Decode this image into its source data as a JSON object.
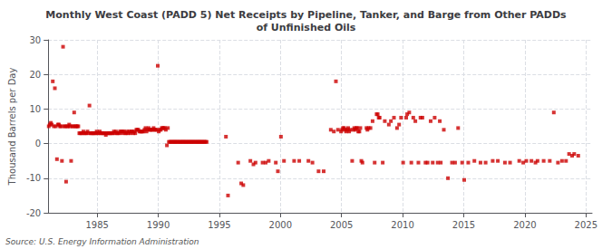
{
  "chart_data": {
    "type": "scatter",
    "title": "Monthly West Coast (PADD 5) Net Receipts by Pipeline, Tanker, and Barge from Other PADDs\nof Unfinished Oils",
    "ylabel": "Thousand Barrels per Day",
    "annotations": [
      "Source: U.S. Energy Information Administration"
    ],
    "color": "#cc0000",
    "marker": "square",
    "grid": true,
    "xlim": [
      1981.0,
      2025.5
    ],
    "xticks": [
      1985,
      1990,
      1995,
      2000,
      2005,
      2010,
      2015,
      2020,
      2025
    ],
    "ylim": [
      -20,
      30
    ],
    "yticks": [
      -20,
      -10,
      0,
      10,
      20,
      30
    ],
    "x": [
      1981.04,
      1981.12,
      1981.21,
      1981.29,
      1981.37,
      1981.46,
      1981.54,
      1981.62,
      1981.71,
      1981.79,
      1981.87,
      1981.96,
      1982.04,
      1982.12,
      1982.21,
      1982.29,
      1982.37,
      1982.46,
      1982.54,
      1982.62,
      1982.71,
      1982.79,
      1982.87,
      1982.96,
      1983.04,
      1983.12,
      1983.21,
      1983.29,
      1983.37,
      1983.46,
      1983.54,
      1983.62,
      1983.71,
      1983.79,
      1983.87,
      1983.96,
      1984.04,
      1984.12,
      1984.21,
      1984.29,
      1984.37,
      1984.46,
      1984.54,
      1984.62,
      1984.71,
      1984.79,
      1984.87,
      1984.96,
      1985.04,
      1985.12,
      1985.21,
      1985.29,
      1985.37,
      1985.46,
      1985.54,
      1985.62,
      1985.71,
      1985.79,
      1985.87,
      1985.96,
      1986.04,
      1986.12,
      1986.21,
      1986.29,
      1986.37,
      1986.46,
      1986.54,
      1986.62,
      1986.71,
      1986.79,
      1986.87,
      1986.96,
      1987.04,
      1987.12,
      1987.21,
      1987.29,
      1987.37,
      1987.46,
      1987.54,
      1987.62,
      1987.71,
      1987.79,
      1987.87,
      1987.96,
      1988.04,
      1988.12,
      1988.21,
      1988.29,
      1988.37,
      1988.46,
      1988.54,
      1988.62,
      1988.71,
      1988.79,
      1988.87,
      1988.96,
      1989.04,
      1989.12,
      1989.21,
      1989.29,
      1989.37,
      1989.46,
      1989.54,
      1989.62,
      1989.71,
      1989.79,
      1989.87,
      1989.96,
      1990.04,
      1990.12,
      1990.21,
      1990.29,
      1990.37,
      1990.46,
      1990.54,
      1990.62,
      1990.71,
      1990.79,
      1990.87,
      1990.96,
      1991.04,
      1991.12,
      1991.21,
      1991.29,
      1991.37,
      1991.46,
      1991.54,
      1991.62,
      1991.71,
      1991.79,
      1991.87,
      1991.96,
      1992.04,
      1992.12,
      1992.21,
      1992.29,
      1992.37,
      1992.46,
      1992.54,
      1992.62,
      1992.71,
      1992.79,
      1992.87,
      1992.96,
      1993.04,
      1993.12,
      1993.21,
      1993.29,
      1993.37,
      1993.46,
      1993.54,
      1993.62,
      1993.71,
      1993.79,
      1993.87,
      1993.96,
      1995.54,
      1995.71,
      1996.54,
      1996.79,
      1996.96,
      1997.54,
      1997.79,
      1997.96,
      1998.54,
      1998.79,
      1999.04,
      1999.62,
      1999.79,
      2000.04,
      2000.29,
      2001.12,
      2001.54,
      2002.29,
      2002.62,
      2003.12,
      2003.54,
      2004.12,
      2004.37,
      2004.54,
      2004.71,
      2004.96,
      2005.04,
      2005.12,
      2005.21,
      2005.29,
      2005.37,
      2005.46,
      2005.54,
      2005.62,
      2005.71,
      2005.87,
      2005.96,
      2006.04,
      2006.12,
      2006.21,
      2006.29,
      2006.37,
      2006.46,
      2006.54,
      2006.62,
      2006.71,
      2007.04,
      2007.12,
      2007.21,
      2007.37,
      2007.54,
      2007.71,
      2007.87,
      2007.96,
      2008.04,
      2008.12,
      2008.37,
      2008.54,
      2008.87,
      2009.04,
      2009.29,
      2009.54,
      2009.71,
      2009.87,
      2010.04,
      2010.29,
      2010.37,
      2010.54,
      2010.71,
      2010.87,
      2011.04,
      2011.29,
      2011.46,
      2011.62,
      2011.87,
      2012.04,
      2012.29,
      2012.46,
      2012.62,
      2012.87,
      2013.04,
      2013.12,
      2013.37,
      2013.71,
      2014.04,
      2014.29,
      2014.54,
      2014.87,
      2015.04,
      2015.37,
      2015.87,
      2016.37,
      2016.79,
      2017.37,
      2017.79,
      2018.37,
      2018.79,
      2019.54,
      2019.87,
      2020.12,
      2020.54,
      2020.87,
      2021.04,
      2021.54,
      2022.04,
      2022.37,
      2022.71,
      2023.04,
      2023.37,
      2023.62,
      2023.87,
      2024.04,
      2024.37
    ],
    "values": [
      5.0,
      5.5,
      6.0,
      5.5,
      18.0,
      5.0,
      16.0,
      5.0,
      -4.5,
      5.5,
      5.5,
      5.0,
      5.0,
      -5.0,
      28.0,
      5.0,
      5.0,
      -11.0,
      5.0,
      5.0,
      5.5,
      5.0,
      -5.0,
      5.0,
      5.0,
      9.0,
      5.0,
      5.0,
      5.0,
      5.0,
      3.0,
      3.0,
      3.0,
      3.0,
      3.5,
      3.0,
      3.0,
      3.0,
      3.5,
      3.0,
      11.0,
      3.0,
      3.0,
      3.0,
      3.0,
      3.0,
      3.0,
      3.5,
      3.0,
      3.0,
      3.5,
      3.0,
      3.0,
      3.0,
      3.0,
      3.0,
      2.5,
      3.0,
      3.0,
      3.0,
      3.0,
      3.0,
      3.0,
      3.0,
      3.5,
      3.0,
      3.5,
      3.0,
      3.0,
      3.0,
      3.5,
      3.5,
      3.0,
      3.5,
      3.5,
      3.0,
      3.0,
      3.5,
      3.0,
      3.5,
      3.0,
      3.5,
      3.5,
      3.0,
      3.5,
      3.0,
      4.0,
      4.0,
      4.0,
      3.5,
      3.5,
      3.5,
      3.5,
      3.5,
      4.0,
      4.5,
      3.5,
      4.0,
      4.5,
      4.0,
      4.0,
      4.0,
      4.0,
      4.5,
      4.0,
      4.0,
      4.0,
      22.5,
      3.5,
      4.0,
      4.0,
      4.5,
      4.5,
      4.5,
      4.5,
      4.0,
      -0.5,
      4.5,
      0.5,
      0.5,
      0.5,
      0.5,
      0.5,
      0.5,
      0.5,
      0.5,
      0.5,
      0.5,
      0.5,
      0.5,
      0.5,
      0.5,
      0.5,
      0.5,
      0.5,
      0.5,
      0.5,
      0.5,
      0.5,
      0.5,
      0.5,
      0.5,
      0.5,
      0.5,
      0.5,
      0.5,
      0.5,
      0.5,
      0.5,
      0.5,
      0.5,
      0.5,
      0.5,
      0.5,
      0.5,
      0.5,
      2.0,
      -15.0,
      -5.5,
      -11.5,
      -12.0,
      -5.0,
      -6.0,
      -5.5,
      -5.5,
      -5.5,
      -5.0,
      -5.5,
      -8.0,
      2.0,
      -5.0,
      -5.0,
      -5.0,
      -5.0,
      -5.5,
      -8.0,
      -8.0,
      4.0,
      3.5,
      18.0,
      4.0,
      3.5,
      4.0,
      4.5,
      4.5,
      4.0,
      3.5,
      4.0,
      4.5,
      3.5,
      4.0,
      -5.0,
      4.0,
      4.5,
      4.0,
      4.5,
      4.5,
      3.5,
      3.5,
      4.5,
      -5.0,
      -5.5,
      4.5,
      4.0,
      4.5,
      4.5,
      6.5,
      -5.5,
      8.5,
      8.5,
      7.5,
      7.5,
      -5.5,
      6.5,
      5.5,
      6.5,
      7.5,
      4.5,
      5.5,
      7.5,
      -5.5,
      7.5,
      8.5,
      9.0,
      -5.5,
      7.5,
      6.5,
      -5.5,
      7.5,
      7.5,
      -5.5,
      -5.5,
      6.5,
      -5.5,
      7.5,
      -5.5,
      6.5,
      -5.5,
      4.0,
      -10.0,
      -5.5,
      -5.5,
      4.5,
      -5.5,
      -10.5,
      -5.5,
      -5.0,
      -5.5,
      -5.5,
      -5.0,
      -5.0,
      -5.5,
      -5.5,
      -5.0,
      -5.5,
      -5.0,
      -5.0,
      -5.5,
      -5.0,
      -5.0,
      -5.0,
      9.0,
      -5.5,
      -5.0,
      -5.0,
      -3.0,
      -3.5,
      -3.0,
      -3.5
    ]
  }
}
